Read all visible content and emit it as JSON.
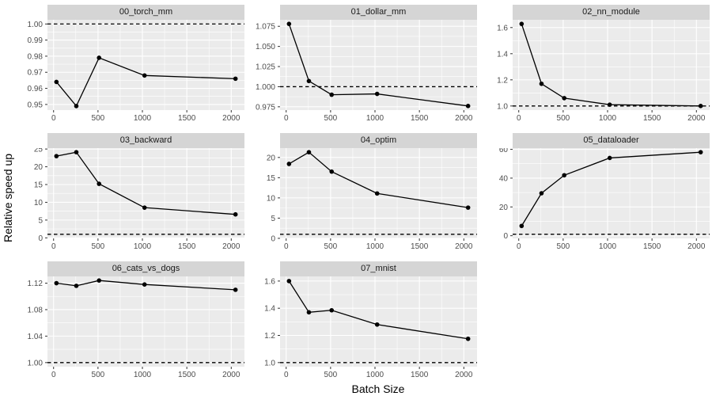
{
  "axes": {
    "x_title": "Batch Size",
    "y_title": "Relative speed up",
    "x_ticks": [
      0,
      500,
      1000,
      1500,
      2000
    ],
    "x_tick_labels": [
      "0",
      "500",
      "1000",
      "1500",
      "2000"
    ],
    "x_minor": [
      250,
      750,
      1250,
      1750
    ],
    "xlim": [
      -68.8,
      2148.8
    ]
  },
  "style": {
    "strip_bg": "#d5d5d5",
    "panel_bg": "#ebebeb",
    "grid_color": "#ffffff",
    "line_color": "#000000",
    "point_color": "#000000",
    "reference_line_color": "#000000",
    "tick_mark_color": "#333333",
    "tick_text_color": "#4d4d4d"
  },
  "chart_data": {
    "type": "line",
    "xlabel": "Batch Size",
    "ylabel": "Relative speed up",
    "x": [
      32,
      256,
      512,
      1024,
      2048
    ],
    "reference_line_y": 1.0,
    "reference_line_style": "dashed",
    "legend": "none",
    "grid": "on",
    "facets": [
      {
        "title": "00_torch_mm",
        "values": [
          0.964,
          0.949,
          0.979,
          0.968,
          0.966
        ],
        "ylim": [
          0.9465,
          1.0026
        ],
        "yticks": [
          0.95,
          0.96,
          0.97,
          0.98,
          0.99,
          1.0
        ],
        "ytick_labels": [
          "0.95",
          "0.96",
          "0.97",
          "0.98",
          "0.99",
          "1.00"
        ]
      },
      {
        "title": "01_dollar_mm",
        "values": [
          1.078,
          1.007,
          0.99,
          0.991,
          0.976
        ],
        "ylim": [
          0.9709,
          1.0831
        ],
        "yticks": [
          0.975,
          1.0,
          1.025,
          1.05,
          1.075
        ],
        "ytick_labels": [
          "0.975",
          "1.000",
          "1.025",
          "1.050",
          "1.075"
        ]
      },
      {
        "title": "02_nn_module",
        "values": [
          1.628,
          1.17,
          1.06,
          1.01,
          1.0
        ],
        "ylim": [
          0.9686,
          1.6594
        ],
        "yticks": [
          1.0,
          1.2,
          1.4,
          1.6
        ],
        "ytick_labels": [
          "1.0",
          "1.2",
          "1.4",
          "1.6"
        ]
      },
      {
        "title": "03_backward",
        "values": [
          23.0,
          24.1,
          15.2,
          8.5,
          6.6
        ],
        "ylim": [
          -0.155,
          25.255
        ],
        "yticks": [
          0,
          5,
          10,
          15,
          20,
          25
        ],
        "ytick_labels": [
          "0",
          "5",
          "10",
          "15",
          "20",
          "25"
        ]
      },
      {
        "title": "04_optim",
        "values": [
          18.4,
          21.3,
          16.5,
          11.1,
          7.6
        ],
        "ylim": [
          -0.015,
          22.315
        ],
        "yticks": [
          0,
          5,
          10,
          15,
          20
        ],
        "ytick_labels": [
          "0",
          "5",
          "10",
          "15",
          "20"
        ]
      },
      {
        "title": "05_dataloader",
        "values": [
          6.8,
          29.5,
          42,
          54,
          58
        ],
        "ylim": [
          -1.85,
          60.85
        ],
        "yticks": [
          0,
          20,
          40,
          60
        ],
        "ytick_labels": [
          "0",
          "20",
          "40",
          "60"
        ]
      },
      {
        "title": "06_cats_vs_dogs",
        "values": [
          1.12,
          1.116,
          1.124,
          1.118,
          1.11
        ],
        "ylim": [
          0.9938,
          1.1302
        ],
        "yticks": [
          1.0,
          1.04,
          1.08,
          1.12
        ],
        "ytick_labels": [
          "1.00",
          "1.04",
          "1.08",
          "1.12"
        ]
      },
      {
        "title": "07_mnist",
        "values": [
          1.6,
          1.37,
          1.385,
          1.28,
          1.175
        ],
        "ylim": [
          0.9698,
          1.6342
        ],
        "yticks": [
          1.0,
          1.2,
          1.4,
          1.6
        ],
        "ytick_labels": [
          "1.0",
          "1.2",
          "1.4",
          "1.6"
        ]
      }
    ]
  }
}
